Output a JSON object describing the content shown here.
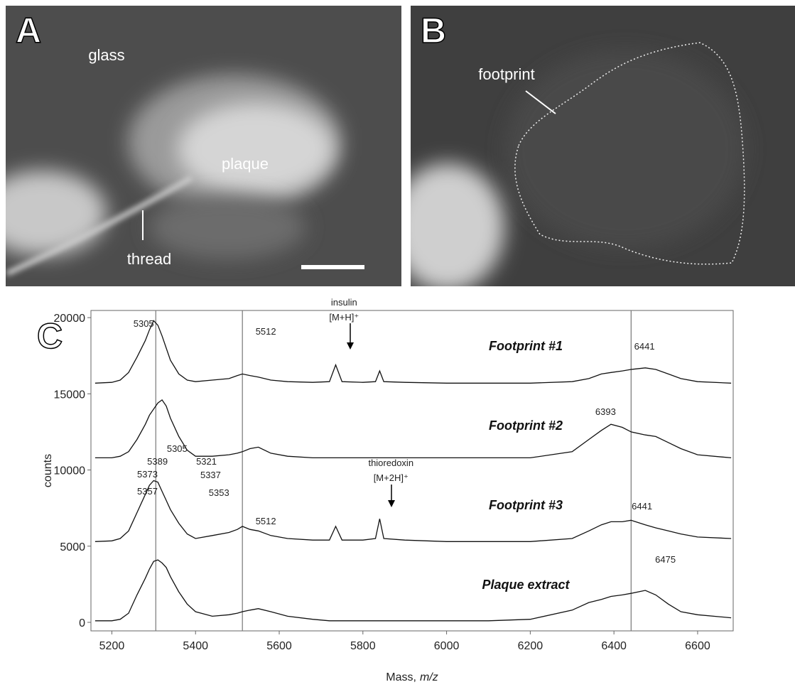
{
  "panels": [
    {
      "letter": "A",
      "labels": [
        "glass",
        "plaque",
        "thread"
      ]
    },
    {
      "letter": "B",
      "labels": [
        "footprint"
      ]
    }
  ],
  "chart_data": {
    "type": "line",
    "letter": "C",
    "xlabel": [
      "Mass,",
      "m/z"
    ],
    "ylabel": "counts",
    "xlim": [
      5150,
      6685
    ],
    "ylim": [
      -560,
      20470
    ],
    "xticks": [
      5200,
      5400,
      5600,
      5800,
      6000,
      6200,
      6400,
      6600
    ],
    "yticks": [
      0,
      5000,
      10000,
      15000,
      20000
    ],
    "vlines": [
      5305,
      5512,
      6441
    ],
    "x": [
      5160,
      5200,
      5220,
      5240,
      5260,
      5280,
      5290,
      5300,
      5310,
      5320,
      5330,
      5340,
      5360,
      5380,
      5400,
      5440,
      5480,
      5500,
      5512,
      5530,
      5550,
      5580,
      5620,
      5680,
      5720,
      5735,
      5750,
      5800,
      5830,
      5840,
      5850,
      5900,
      6000,
      6100,
      6200,
      6300,
      6340,
      6370,
      6393,
      6420,
      6441,
      6475,
      6500,
      6530,
      6560,
      6600,
      6680
    ],
    "series": [
      {
        "name": "Footprint #1",
        "color": "#111111",
        "values": [
          15700,
          15750,
          15900,
          16400,
          17400,
          18500,
          19200,
          19800,
          19500,
          18800,
          18000,
          17200,
          16300,
          15900,
          15800,
          15900,
          16000,
          16200,
          16300,
          16200,
          16100,
          15900,
          15800,
          15750,
          15800,
          16900,
          15800,
          15750,
          15800,
          16500,
          15800,
          15750,
          15700,
          15700,
          15700,
          15800,
          16000,
          16300,
          16400,
          16500,
          16600,
          16700,
          16600,
          16300,
          16000,
          15800,
          15700
        ]
      },
      {
        "name": "Footprint #2",
        "color": "#111111",
        "values": [
          10800,
          10800,
          10900,
          11200,
          12000,
          13000,
          13600,
          14000,
          14400,
          14600,
          14200,
          13400,
          12200,
          11300,
          10900,
          10900,
          11000,
          11100,
          11200,
          11400,
          11500,
          11100,
          10900,
          10800,
          10800,
          10800,
          10800,
          10800,
          10800,
          10800,
          10800,
          10800,
          10800,
          10800,
          10800,
          11200,
          12000,
          12600,
          13000,
          12800,
          12500,
          12300,
          12200,
          11800,
          11400,
          11000,
          10800
        ]
      },
      {
        "name": "Footprint #3",
        "color": "#111111",
        "values": [
          5300,
          5350,
          5500,
          6000,
          7200,
          8400,
          9000,
          9300,
          9200,
          8600,
          8000,
          7400,
          6500,
          5800,
          5500,
          5700,
          5900,
          6100,
          6300,
          6100,
          6000,
          5700,
          5500,
          5400,
          5400,
          6300,
          5400,
          5400,
          5500,
          6800,
          5500,
          5400,
          5300,
          5300,
          5300,
          5500,
          6000,
          6400,
          6600,
          6600,
          6700,
          6400,
          6200,
          6000,
          5800,
          5600,
          5500
        ]
      },
      {
        "name": "Plaque extract",
        "color": "#111111",
        "values": [
          100,
          100,
          200,
          600,
          1800,
          2900,
          3500,
          4000,
          4100,
          3900,
          3600,
          3000,
          2000,
          1200,
          700,
          400,
          500,
          600,
          700,
          800,
          900,
          700,
          400,
          200,
          100,
          100,
          100,
          100,
          100,
          100,
          100,
          100,
          100,
          100,
          200,
          800,
          1300,
          1500,
          1700,
          1800,
          1900,
          2100,
          1800,
          1200,
          700,
          500,
          300
        ]
      }
    ],
    "annotations": [
      {
        "text": "5305",
        "x": 5276,
        "y": 19630
      },
      {
        "text": "5512",
        "x": 5568,
        "y": 19110
      },
      {
        "text": "insulin",
        "x": 5755,
        "y": 21030
      },
      {
        "text": "[M+H]⁺",
        "x": 5755,
        "y": 20050
      },
      {
        "text": "6441",
        "x": 6473,
        "y": 18140
      },
      {
        "text": "6393",
        "x": 6380,
        "y": 13850
      },
      {
        "text": "5305",
        "x": 5356,
        "y": 11420
      },
      {
        "text": "5389",
        "x": 5309,
        "y": 10580
      },
      {
        "text": "5321",
        "x": 5426,
        "y": 10580
      },
      {
        "text": "5373",
        "x": 5285,
        "y": 9740
      },
      {
        "text": "5337",
        "x": 5436,
        "y": 9700
      },
      {
        "text": "5357",
        "x": 5285,
        "y": 8620
      },
      {
        "text": "5353",
        "x": 5456,
        "y": 8530
      },
      {
        "text": "5512",
        "x": 5568,
        "y": 6670
      },
      {
        "text": "thioredoxin",
        "x": 5867,
        "y": 10490
      },
      {
        "text": "[M+2H]⁺",
        "x": 5867,
        "y": 9510
      },
      {
        "text": "6441",
        "x": 6467,
        "y": 7650
      },
      {
        "text": "6475",
        "x": 6523,
        "y": 4150
      }
    ]
  }
}
